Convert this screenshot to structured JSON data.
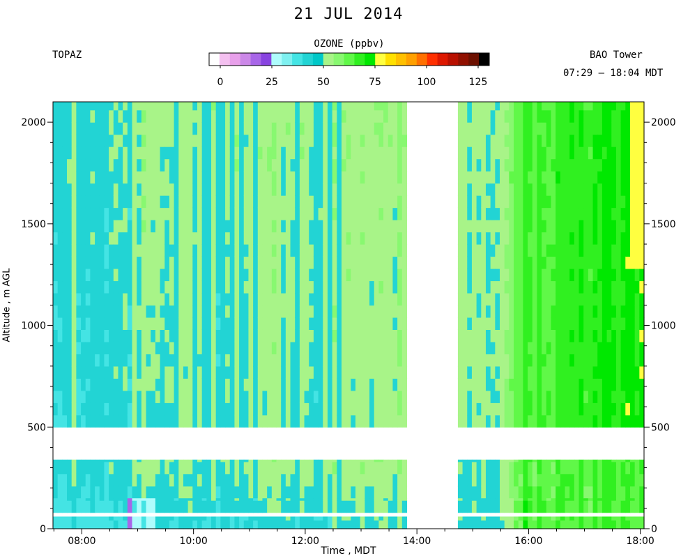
{
  "header": {
    "title": "21 JUL 2014",
    "left_label": "TOPAZ",
    "right_label": "BAO Tower",
    "time_range": "07:29 – 18:04 MDT"
  },
  "colorbar": {
    "title": "OZONE (ppbv)",
    "ticks": [
      "0",
      "25",
      "50",
      "75",
      "100",
      "125"
    ],
    "min": 0,
    "max": 130,
    "colors": [
      "#ffffff",
      "#f4c0f0",
      "#e8a0ea",
      "#cc88e8",
      "#a866e8",
      "#8844e0",
      "#aefcfc",
      "#7ef0f0",
      "#44e4e4",
      "#22d4d4",
      "#00c8c8",
      "#a8f488",
      "#88f870",
      "#60f848",
      "#30f020",
      "#00e800",
      "#ffff40",
      "#ffe000",
      "#ffc000",
      "#ffa000",
      "#ff7000",
      "#ff3000",
      "#dd1800",
      "#b81000",
      "#901000",
      "#6c1000",
      "#000000"
    ]
  },
  "chart_data": {
    "type": "heatmap",
    "title": "21 JUL 2014",
    "xlabel": "Time , MDT",
    "ylabel": "Altitude , m AGL",
    "xlim": [
      "07:29",
      "18:04"
    ],
    "ylim": [
      0,
      2100
    ],
    "x_ticks": [
      "08:00",
      "10:00",
      "12:00",
      "14:00",
      "16:00",
      "18:00"
    ],
    "y_ticks": [
      "0",
      "500",
      "1000",
      "1500",
      "2000"
    ],
    "y_ticks_right": [
      "0",
      "500",
      "1000",
      "1500",
      "2000"
    ],
    "variable": "OZONE (ppbv)",
    "data_gaps": {
      "time_gap": [
        "13:52",
        "14:40"
      ],
      "altitude_gaps": [
        [
          340,
          500
        ],
        [
          150,
          80
        ],
        [
          60,
          40
        ]
      ]
    },
    "periods": [
      {
        "time": [
          "07:29",
          "13:52"
        ],
        "altitude": [
          500,
          2100
        ],
        "ozone_ppbv": [
          40,
          60
        ]
      },
      {
        "time": [
          "14:40",
          "15:25"
        ],
        "altitude": [
          500,
          2100
        ],
        "ozone_ppbv": [
          45,
          60
        ]
      },
      {
        "time": [
          "15:25",
          "18:04"
        ],
        "altitude": [
          500,
          2100
        ],
        "ozone_ppbv": [
          60,
          80
        ]
      },
      {
        "time": [
          "07:29",
          "13:52"
        ],
        "altitude": [
          0,
          340
        ],
        "ozone_ppbv": [
          20,
          55
        ]
      },
      {
        "time": [
          "14:40",
          "18:04"
        ],
        "altitude": [
          0,
          340
        ],
        "ozone_ppbv": [
          40,
          78
        ]
      }
    ]
  }
}
